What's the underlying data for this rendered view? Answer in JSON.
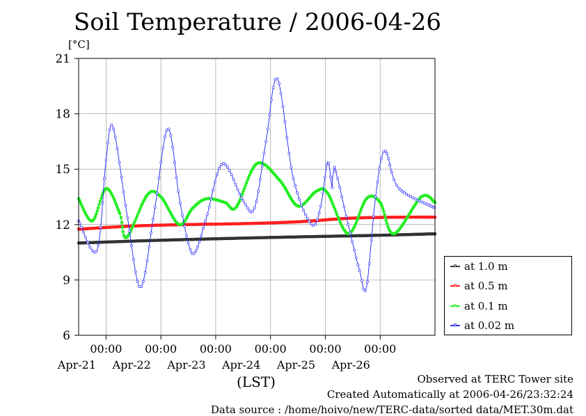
{
  "title": "Soil Temperature / 2006-04-26",
  "unit_label": "[°C]",
  "x_unit_label": "(LST)",
  "footer": {
    "observed": "Observed at TERC Tower site",
    "created": "Created Automatically at 2006-04-26/23:32:24",
    "source": "Data source : /home/hoivo/new/TERC-data/sorted  data/MET.30m.dat"
  },
  "chart_data": {
    "type": "line",
    "title": "Soil Temperature / 2006-04-26",
    "ylabel": "[°C]",
    "xlabel": "(LST)",
    "ylim": [
      6,
      21
    ],
    "yticks": [
      6,
      9,
      12,
      15,
      18,
      21
    ],
    "xlim": [
      "2006-04-20 12:00",
      "2006-04-27 00:00"
    ],
    "xticks": [
      "2006-04-21 00:00",
      "2006-04-22 00:00",
      "2006-04-23 00:00",
      "2006-04-24 00:00",
      "2006-04-25 00:00",
      "2006-04-26 00:00"
    ],
    "xtick_time_labels": [
      "00:00",
      "00:00",
      "00:00",
      "00:00",
      "00:00",
      "00:00"
    ],
    "xtick_date_labels": [
      "Apr-21",
      "Apr-22",
      "Apr-23",
      "Apr-24",
      "Apr-25",
      "Apr-26"
    ],
    "grid": true,
    "legend_position": "right",
    "series": [
      {
        "name": "at 1.0 m",
        "color": "#333333",
        "points": [
          [
            "2006-04-20 12:00",
            11.0
          ],
          [
            "2006-04-22 00:00",
            11.15
          ],
          [
            "2006-04-24 00:00",
            11.3
          ],
          [
            "2006-04-26 00:00",
            11.42
          ],
          [
            "2006-04-27 00:00",
            11.5
          ]
        ]
      },
      {
        "name": "at 0.5 m",
        "color": "#ff2020",
        "points": [
          [
            "2006-04-20 12:00",
            11.75
          ],
          [
            "2006-04-21 12:00",
            11.92
          ],
          [
            "2006-04-22 12:00",
            12.0
          ],
          [
            "2006-04-23 12:00",
            12.05
          ],
          [
            "2006-04-24 12:00",
            12.15
          ],
          [
            "2006-04-25 12:00",
            12.35
          ],
          [
            "2006-04-26 12:00",
            12.4
          ],
          [
            "2006-04-27 00:00",
            12.4
          ]
        ]
      },
      {
        "name": "at 0.1 m",
        "color": "#22ee22",
        "points": [
          [
            "2006-04-20 12:00",
            13.4
          ],
          [
            "2006-04-20 18:00",
            12.2
          ],
          [
            "2006-04-21 00:00",
            13.95
          ],
          [
            "2006-04-21 06:00",
            12.6
          ],
          [
            "2006-04-21 09:00",
            11.3
          ],
          [
            "2006-04-21 18:00",
            13.6
          ],
          [
            "2006-04-22 00:00",
            13.5
          ],
          [
            "2006-04-22 08:00",
            12.0
          ],
          [
            "2006-04-22 14:00",
            12.9
          ],
          [
            "2006-04-22 20:00",
            13.4
          ],
          [
            "2006-04-23 04:00",
            13.2
          ],
          [
            "2006-04-23 09:00",
            12.95
          ],
          [
            "2006-04-23 18:00",
            15.3
          ],
          [
            "2006-04-24 04:00",
            14.4
          ],
          [
            "2006-04-24 12:00",
            13.0
          ],
          [
            "2006-04-24 20:00",
            13.8
          ],
          [
            "2006-04-25 01:00",
            13.7
          ],
          [
            "2006-04-25 10:00",
            11.5
          ],
          [
            "2006-04-25 18:00",
            13.4
          ],
          [
            "2006-04-26 00:00",
            13.2
          ],
          [
            "2006-04-26 06:00",
            11.5
          ],
          [
            "2006-04-26 18:00",
            13.5
          ],
          [
            "2006-04-27 00:00",
            13.2
          ]
        ]
      },
      {
        "name": "at 0.02 m",
        "color": "#3333ff",
        "points": [
          [
            "2006-04-20 12:00",
            12.2
          ],
          [
            "2006-04-20 20:00",
            10.6
          ],
          [
            "2006-04-21 00:00",
            15.5
          ],
          [
            "2006-04-21 03:00",
            17.3
          ],
          [
            "2006-04-21 09:00",
            12.7
          ],
          [
            "2006-04-21 15:00",
            8.6
          ],
          [
            "2006-04-21 21:00",
            12.6
          ],
          [
            "2006-04-22 03:00",
            17.2
          ],
          [
            "2006-04-22 08:00",
            13.5
          ],
          [
            "2006-04-22 12:00",
            11.0
          ],
          [
            "2006-04-22 15:00",
            10.5
          ],
          [
            "2006-04-22 20:00",
            12.4
          ],
          [
            "2006-04-23 03:00",
            15.3
          ],
          [
            "2006-04-23 12:00",
            13.3
          ],
          [
            "2006-04-23 17:00",
            12.9
          ],
          [
            "2006-04-23 22:00",
            16.5
          ],
          [
            "2006-04-24 03:00",
            19.9
          ],
          [
            "2006-04-24 10:00",
            14.5
          ],
          [
            "2006-04-24 18:00",
            12.0
          ],
          [
            "2006-04-24 22:00",
            13.0
          ],
          [
            "2006-04-25 01:00",
            15.4
          ],
          [
            "2006-04-25 03:00",
            14.0
          ],
          [
            "2006-04-25 04:00",
            15.1
          ],
          [
            "2006-04-25 10:00",
            12.0
          ],
          [
            "2006-04-25 15:00",
            9.5
          ],
          [
            "2006-04-25 18:00",
            8.6
          ],
          [
            "2006-04-25 22:00",
            13.5
          ],
          [
            "2006-04-26 02:00",
            16.0
          ],
          [
            "2006-04-26 08:00",
            14.0
          ],
          [
            "2006-04-27 00:00",
            12.9
          ]
        ]
      }
    ]
  }
}
